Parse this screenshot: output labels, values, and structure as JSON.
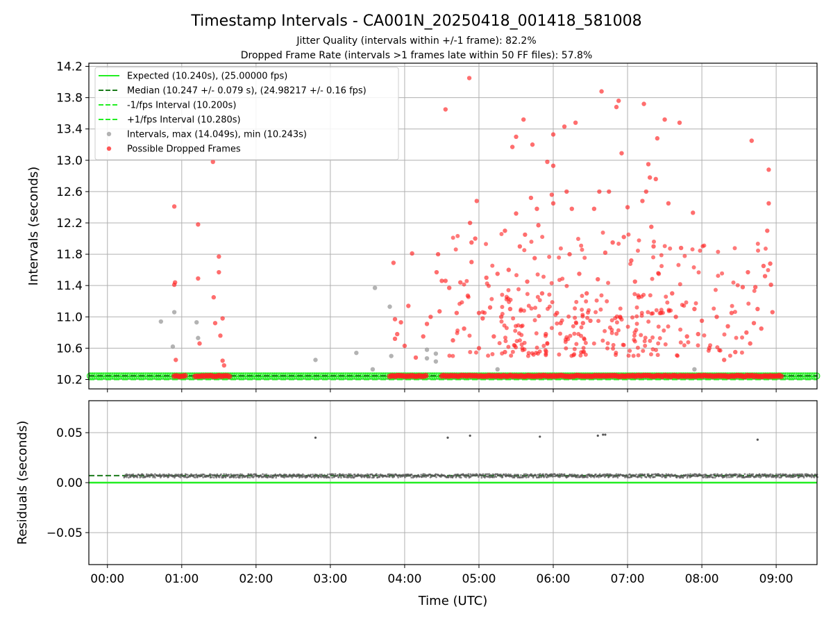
{
  "title": "Timestamp Intervals - CA001N_20250418_001418_581008",
  "subtitle1": "Jitter Quality (intervals within +/-1 frame): 82.2%",
  "subtitle2": "Dropped Frame Rate (intervals >1 frames late within 50 FF files): 57.8%",
  "colors": {
    "expected": "#22ee22",
    "median": "#1a7a1a",
    "fps_band": "#22ee22",
    "intervals": "#999999",
    "dropped": "#ff2020",
    "residuals": "#555555",
    "grid": "#b0b0b0"
  },
  "chart_data": [
    {
      "type": "scatter",
      "name": "intervals-panel",
      "xlabel": "",
      "ylabel": "Intervals (seconds)",
      "xlim": [
        -0.25,
        9.55
      ],
      "ylim": [
        10.08,
        14.24
      ],
      "yticks": [
        10.2,
        10.6,
        11.0,
        11.4,
        11.8,
        12.2,
        12.6,
        13.0,
        13.4,
        13.8,
        14.2
      ],
      "ytick_labels": [
        "10.2",
        "10.6",
        "11.0",
        "11.4",
        "11.8",
        "12.2",
        "12.6",
        "13.0",
        "13.4",
        "13.8",
        "14.2"
      ],
      "grid": true,
      "legend_position": "upper-left",
      "legend": [
        {
          "label": "Expected (10.240s), (25.00000 fps)",
          "style": "solid-line",
          "color": "#22ee22"
        },
        {
          "label": "Median (10.247 +/- 0.079 s), (24.98217 +/- 0.16 fps)",
          "style": "dashed-line",
          "color": "#1a7a1a"
        },
        {
          "label": "-1/fps Interval (10.200s)",
          "style": "dashed-line",
          "color": "#22ee22"
        },
        {
          "label": "+1/fps Interval (10.280s)",
          "style": "dashed-line",
          "color": "#22ee22"
        },
        {
          "label": "Intervals, max (14.049s), min (10.243s)",
          "style": "dot",
          "color": "#999999"
        },
        {
          "label": "Possible Dropped Frames",
          "style": "dot",
          "color": "#ff2020"
        }
      ],
      "reference_lines": {
        "expected": 10.24,
        "median": 10.247,
        "minus_fps": 10.2,
        "plus_fps": 10.28
      },
      "baseline_band": {
        "y": 10.245,
        "x_start": -0.25,
        "x_end": 9.55
      },
      "dropped_baseline_segments": [
        [
          0.9,
          1.05
        ],
        [
          1.18,
          1.65
        ],
        [
          3.8,
          4.3
        ],
        [
          4.5,
          9.08
        ]
      ],
      "series": [
        {
          "name": "Intervals",
          "points": [
            [
              0.72,
              10.94
            ],
            [
              0.9,
              11.06
            ],
            [
              0.88,
              10.62
            ],
            [
              1.2,
              10.93
            ],
            [
              1.22,
              10.73
            ],
            [
              2.8,
              10.45
            ],
            [
              3.35,
              10.54
            ],
            [
              3.6,
              11.37
            ],
            [
              3.57,
              10.33
            ],
            [
              3.82,
              10.5
            ],
            [
              3.8,
              11.13
            ],
            [
              4.3,
              10.58
            ],
            [
              4.3,
              10.47
            ],
            [
              4.42,
              10.53
            ],
            [
              4.42,
              10.43
            ],
            [
              5.25,
              10.33
            ],
            [
              7.9,
              10.33
            ]
          ]
        },
        {
          "name": "Possible Dropped Frames",
          "points": [
            [
              0.9,
              12.41
            ],
            [
              0.91,
              11.44
            ],
            [
              0.9,
              11.41
            ],
            [
              0.92,
              10.45
            ],
            [
              1.22,
              12.18
            ],
            [
              1.22,
              11.49
            ],
            [
              1.24,
              10.66
            ],
            [
              1.42,
              12.98
            ],
            [
              1.43,
              11.25
            ],
            [
              1.45,
              10.92
            ],
            [
              1.5,
              11.77
            ],
            [
              1.5,
              11.57
            ],
            [
              1.52,
              10.76
            ],
            [
              1.55,
              10.98
            ],
            [
              1.55,
              10.44
            ],
            [
              1.57,
              10.38
            ],
            [
              3.85,
              11.69
            ],
            [
              3.87,
              10.97
            ],
            [
              3.87,
              10.72
            ],
            [
              3.9,
              10.78
            ],
            [
              3.95,
              10.93
            ],
            [
              4.0,
              10.63
            ],
            [
              4.05,
              11.14
            ],
            [
              4.1,
              11.81
            ],
            [
              4.15,
              10.48
            ],
            [
              4.25,
              10.75
            ],
            [
              4.3,
              10.91
            ],
            [
              4.35,
              11.0
            ],
            [
              4.43,
              11.57
            ],
            [
              4.45,
              11.8
            ],
            [
              4.47,
              11.07
            ],
            [
              4.5,
              11.46
            ],
            [
              4.55,
              13.65
            ],
            [
              4.55,
              11.46
            ],
            [
              4.6,
              11.37
            ],
            [
              4.65,
              10.7
            ],
            [
              4.7,
              11.05
            ],
            [
              4.75,
              11.44
            ],
            [
              4.8,
              10.85
            ],
            [
              4.85,
              11.27
            ],
            [
              4.87,
              14.05
            ],
            [
              4.88,
              12.2
            ],
            [
              4.9,
              11.7
            ],
            [
              4.9,
              11.95
            ],
            [
              4.95,
              12.0
            ],
            [
              4.97,
              12.48
            ],
            [
              5.0,
              11.05
            ],
            [
              5.0,
              10.6
            ],
            [
              5.05,
              10.98
            ],
            [
              5.1,
              11.5
            ],
            [
              5.15,
              11.12
            ],
            [
              5.2,
              10.75
            ],
            [
              5.25,
              11.55
            ],
            [
              5.3,
              11.0
            ],
            [
              5.35,
              12.1
            ],
            [
              5.35,
              10.55
            ],
            [
              5.4,
              11.6
            ],
            [
              5.42,
              11.1
            ],
            [
              5.45,
              13.17
            ],
            [
              5.5,
              13.3
            ],
            [
              5.5,
              12.32
            ],
            [
              5.55,
              11.9
            ],
            [
              5.6,
              13.52
            ],
            [
              5.62,
              12.05
            ],
            [
              5.65,
              11.45
            ],
            [
              5.7,
              12.52
            ],
            [
              5.72,
              13.2
            ],
            [
              5.75,
              11.75
            ],
            [
              5.78,
              12.38
            ],
            [
              5.8,
              12.17
            ],
            [
              5.85,
              11.3
            ],
            [
              5.9,
              10.78
            ],
            [
              5.92,
              12.98
            ],
            [
              5.98,
              12.56
            ],
            [
              6.0,
              12.45
            ],
            [
              6.0,
              13.33
            ],
            [
              6.0,
              12.93
            ],
            [
              6.05,
              11.05
            ],
            [
              6.1,
              10.92
            ],
            [
              6.15,
              13.43
            ],
            [
              6.18,
              12.6
            ],
            [
              6.22,
              11.8
            ],
            [
              6.25,
              12.38
            ],
            [
              6.3,
              13.48
            ],
            [
              6.35,
              11.55
            ],
            [
              6.4,
              10.92
            ],
            [
              6.45,
              11.3
            ],
            [
              6.5,
              10.95
            ],
            [
              6.55,
              12.38
            ],
            [
              6.6,
              11.48
            ],
            [
              6.62,
              12.6
            ],
            [
              6.65,
              13.88
            ],
            [
              6.7,
              11.82
            ],
            [
              6.75,
              12.6
            ],
            [
              6.8,
              11.95
            ],
            [
              6.85,
              13.68
            ],
            [
              6.88,
              13.76
            ],
            [
              6.9,
              11.0
            ],
            [
              6.92,
              13.09
            ],
            [
              6.95,
              12.02
            ],
            [
              7.0,
              12.4
            ],
            [
              7.05,
              11.72
            ],
            [
              7.1,
              11.45
            ],
            [
              7.15,
              11.25
            ],
            [
              7.2,
              12.48
            ],
            [
              7.22,
              13.72
            ],
            [
              7.25,
              12.6
            ],
            [
              7.28,
              12.95
            ],
            [
              7.3,
              12.78
            ],
            [
              7.32,
              12.15
            ],
            [
              7.35,
              11.9
            ],
            [
              7.38,
              12.76
            ],
            [
              7.4,
              13.28
            ],
            [
              7.42,
              11.55
            ],
            [
              7.45,
              11.05
            ],
            [
              7.5,
              13.52
            ],
            [
              7.55,
              12.45
            ],
            [
              7.6,
              11.3
            ],
            [
              7.65,
              11.0
            ],
            [
              7.7,
              13.48
            ],
            [
              7.72,
              11.88
            ],
            [
              7.8,
              10.75
            ],
            [
              7.88,
              12.33
            ],
            [
              7.9,
              11.1
            ],
            [
              7.95,
              10.78
            ],
            [
              8.0,
              10.95
            ],
            [
              8.1,
              10.6
            ],
            [
              8.2,
              11.0
            ],
            [
              8.3,
              10.45
            ],
            [
              8.35,
              10.88
            ],
            [
              8.4,
              11.05
            ],
            [
              8.45,
              10.55
            ],
            [
              8.55,
              11.38
            ],
            [
              8.6,
              10.8
            ],
            [
              8.62,
              11.57
            ],
            [
              8.65,
              10.66
            ],
            [
              8.67,
              13.25
            ],
            [
              8.7,
              10.92
            ],
            [
              8.72,
              11.38
            ],
            [
              8.75,
              11.1
            ],
            [
              8.8,
              10.85
            ],
            [
              8.83,
              11.65
            ],
            [
              8.85,
              11.52
            ],
            [
              8.88,
              12.1
            ],
            [
              8.9,
              12.88
            ],
            [
              8.9,
              12.45
            ],
            [
              8.92,
              11.68
            ],
            [
              8.93,
              11.41
            ],
            [
              8.95,
              11.06
            ]
          ]
        }
      ],
      "cluster_regions": [
        {
          "x_range": [
            5.3,
            7.6
          ],
          "y_range": [
            10.5,
            11.3
          ],
          "count": 140
        },
        {
          "x_range": [
            4.6,
            8.9
          ],
          "y_range": [
            10.5,
            12.1
          ],
          "count": 160
        }
      ]
    },
    {
      "type": "scatter",
      "name": "residuals-panel",
      "xlabel": "Time (UTC)",
      "ylabel": "Residuals (seconds)",
      "xlim": [
        -0.25,
        9.55
      ],
      "ylim": [
        -0.082,
        0.082
      ],
      "yticks": [
        -0.05,
        0.0,
        0.05
      ],
      "ytick_labels": [
        "−0.05",
        "0.00",
        "0.05"
      ],
      "xticks": [
        0,
        1,
        2,
        3,
        4,
        5,
        6,
        7,
        8,
        9
      ],
      "xtick_labels": [
        "00:00",
        "01:00",
        "02:00",
        "03:00",
        "04:00",
        "05:00",
        "06:00",
        "07:00",
        "08:00",
        "09:00"
      ],
      "grid": true,
      "reference_lines": {
        "zero": 0.0,
        "median_residual": 0.007
      },
      "residual_band": {
        "x_start": 0.22,
        "x_end": 9.55,
        "y_center": 0.0068,
        "spread": 0.0018
      },
      "series": [
        {
          "name": "Residuals",
          "points": [
            [
              2.8,
              0.045
            ],
            [
              4.58,
              0.045
            ],
            [
              4.88,
              0.047
            ],
            [
              5.82,
              0.046
            ],
            [
              6.6,
              0.047
            ],
            [
              6.67,
              0.048
            ],
            [
              6.7,
              0.048
            ],
            [
              8.75,
              0.043
            ]
          ]
        }
      ]
    }
  ]
}
